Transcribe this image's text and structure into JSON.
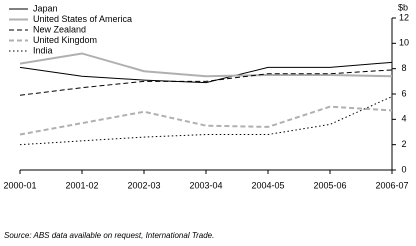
{
  "chart_data": {
    "type": "line",
    "ylabel": "$b",
    "categories": [
      "2000-01",
      "2001-02",
      "2002-03",
      "2003-04",
      "2004-05",
      "2005-06",
      "2006-07"
    ],
    "series": [
      {
        "name": "Japan",
        "color": "#000000",
        "style": "solid",
        "width": 1,
        "values": [
          8.1,
          7.4,
          7.1,
          6.9,
          8.1,
          8.1,
          8.5
        ]
      },
      {
        "name": "United States of America",
        "color": "#b0b0b0",
        "style": "solid",
        "width": 2,
        "values": [
          8.4,
          9.2,
          7.8,
          7.4,
          7.5,
          7.5,
          7.4
        ]
      },
      {
        "name": "New Zealand",
        "color": "#000000",
        "style": "dashed",
        "width": 1,
        "values": [
          5.9,
          6.5,
          7.0,
          7.0,
          7.6,
          7.6,
          7.9
        ]
      },
      {
        "name": "United Kingdom",
        "color": "#b0b0b0",
        "style": "dashed",
        "width": 2,
        "values": [
          2.8,
          3.7,
          4.6,
          3.5,
          3.4,
          5.0,
          4.7
        ]
      },
      {
        "name": "India",
        "color": "#000000",
        "style": "dotted",
        "width": 1,
        "values": [
          2.0,
          2.3,
          2.6,
          2.8,
          2.8,
          3.6,
          5.8
        ]
      }
    ],
    "ylim": [
      0,
      12
    ],
    "yticks": [
      0,
      2,
      4,
      6,
      8,
      10,
      12
    ],
    "grid": false,
    "legend": "top-left",
    "source": "Source: ABS data available on request, International Trade."
  }
}
